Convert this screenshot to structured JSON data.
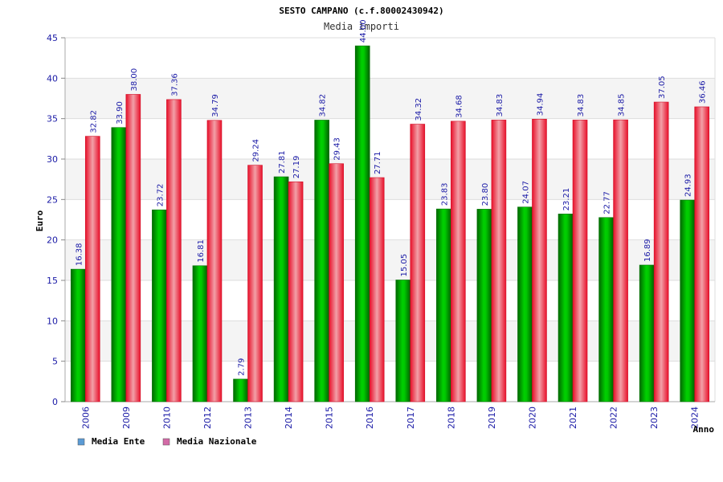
{
  "chart_data": {
    "type": "bar",
    "title": "SESTO CAMPANO (c.f.80002430942)",
    "subtitle": "Media importi",
    "xlabel": "Anno",
    "ylabel": "Euro",
    "ylim": [
      0,
      45
    ],
    "yticks": [
      0,
      5,
      10,
      15,
      20,
      25,
      30,
      35,
      40,
      45
    ],
    "grid": true,
    "legend_position": "bottom-left",
    "categories": [
      "2006",
      "2009",
      "2010",
      "2012",
      "2013",
      "2014",
      "2015",
      "2016",
      "2017",
      "2018",
      "2019",
      "2020",
      "2021",
      "2022",
      "2023",
      "2024"
    ],
    "series": [
      {
        "name": "Media Ente",
        "color": "#00a000",
        "legend_color": "#5b9bd5",
        "values": [
          16.38,
          33.9,
          23.72,
          16.81,
          2.79,
          27.81,
          34.82,
          44.0,
          15.05,
          23.83,
          23.8,
          24.07,
          23.21,
          22.77,
          16.89,
          24.93
        ],
        "labels": [
          "16.38",
          "33.90",
          "23.72",
          "16.81",
          "2.79",
          "27.81",
          "34.82",
          "44.00",
          "15.05",
          "23.83",
          "23.80",
          "24.07",
          "23.21",
          "22.77",
          "16.89",
          "24.93"
        ]
      },
      {
        "name": "Media Nazionale",
        "color": "#e0282e",
        "legend_color": "#d36aa6",
        "values": [
          32.82,
          38.0,
          37.36,
          34.79,
          29.24,
          27.19,
          29.43,
          27.71,
          34.32,
          34.68,
          34.83,
          34.94,
          34.83,
          34.85,
          37.05,
          36.46
        ],
        "labels": [
          "32.82",
          "38.00",
          "37.36",
          "34.79",
          "29.24",
          "27.19",
          "29.43",
          "27.71",
          "34.32",
          "34.68",
          "34.83",
          "34.94",
          "34.83",
          "34.85",
          "37.05",
          "36.46"
        ]
      }
    ]
  }
}
